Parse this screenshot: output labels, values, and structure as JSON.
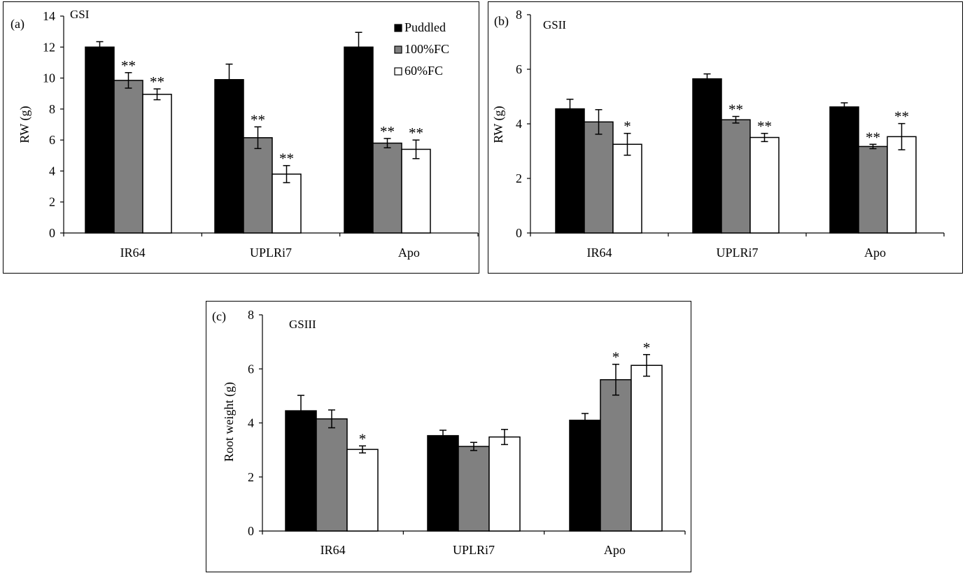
{
  "chart_data": [
    {
      "type": "bar",
      "panel_label": "(a)",
      "title": "GSI",
      "ylabel": "RW (g)",
      "ylim": [
        0,
        14
      ],
      "yticks": [
        "0",
        "2",
        "4",
        "6",
        "8",
        "10",
        "12",
        "14"
      ],
      "categories": [
        "IR64",
        "UPLRi7",
        "Apo"
      ],
      "legend": {
        "position": "top-right",
        "entries": [
          "Puddled",
          "100%FC",
          "60%FC"
        ]
      },
      "series": [
        {
          "name": "Puddled",
          "color": "#000000",
          "values": [
            12.0,
            9.9,
            12.0
          ],
          "errors": [
            0.35,
            1.0,
            0.95
          ],
          "marks": [
            "",
            "",
            ""
          ]
        },
        {
          "name": "100%FC",
          "color": "#808080",
          "values": [
            9.85,
            6.15,
            5.8
          ],
          "errors": [
            0.5,
            0.7,
            0.3
          ],
          "marks": [
            "**",
            "**",
            "**"
          ]
        },
        {
          "name": "60%FC",
          "color": "#ffffff",
          "values": [
            8.95,
            3.8,
            5.4
          ],
          "errors": [
            0.35,
            0.55,
            0.6
          ],
          "marks": [
            "**",
            "**",
            "**"
          ]
        }
      ]
    },
    {
      "type": "bar",
      "panel_label": "(b)",
      "title": "GSII",
      "ylabel": "RW (g)",
      "ylim": [
        0,
        8
      ],
      "yticks": [
        "0",
        "2",
        "4",
        "6",
        "8"
      ],
      "categories": [
        "IR64",
        "UPLRi7",
        "Apo"
      ],
      "series": [
        {
          "name": "Puddled",
          "color": "#000000",
          "values": [
            4.55,
            5.65,
            4.62
          ],
          "errors": [
            0.35,
            0.18,
            0.15
          ],
          "marks": [
            "",
            "",
            ""
          ]
        },
        {
          "name": "100%FC",
          "color": "#808080",
          "values": [
            4.07,
            4.15,
            3.17
          ],
          "errors": [
            0.45,
            0.12,
            0.08
          ],
          "marks": [
            "",
            "**",
            "**"
          ]
        },
        {
          "name": "60%FC",
          "color": "#ffffff",
          "values": [
            3.25,
            3.5,
            3.53
          ],
          "errors": [
            0.4,
            0.15,
            0.48
          ],
          "marks": [
            "*",
            "**",
            "**"
          ]
        }
      ]
    },
    {
      "type": "bar",
      "panel_label": "(c)",
      "title": "GSIII",
      "ylabel": "Root weight (g)",
      "ylim": [
        0,
        8
      ],
      "yticks": [
        "0",
        "2",
        "4",
        "6",
        "8"
      ],
      "categories": [
        "IR64",
        "UPLRi7",
        "Apo"
      ],
      "series": [
        {
          "name": "Puddled",
          "color": "#000000",
          "values": [
            4.45,
            3.53,
            4.1
          ],
          "errors": [
            0.57,
            0.2,
            0.25
          ],
          "marks": [
            "",
            "",
            ""
          ]
        },
        {
          "name": "100%FC",
          "color": "#808080",
          "values": [
            4.15,
            3.13,
            5.6
          ],
          "errors": [
            0.33,
            0.15,
            0.57
          ],
          "marks": [
            "",
            "",
            "*"
          ]
        },
        {
          "name": "60%FC",
          "color": "#ffffff",
          "values": [
            3.02,
            3.48,
            6.13
          ],
          "errors": [
            0.13,
            0.28,
            0.4
          ],
          "marks": [
            "*",
            "",
            "*"
          ]
        }
      ]
    }
  ]
}
